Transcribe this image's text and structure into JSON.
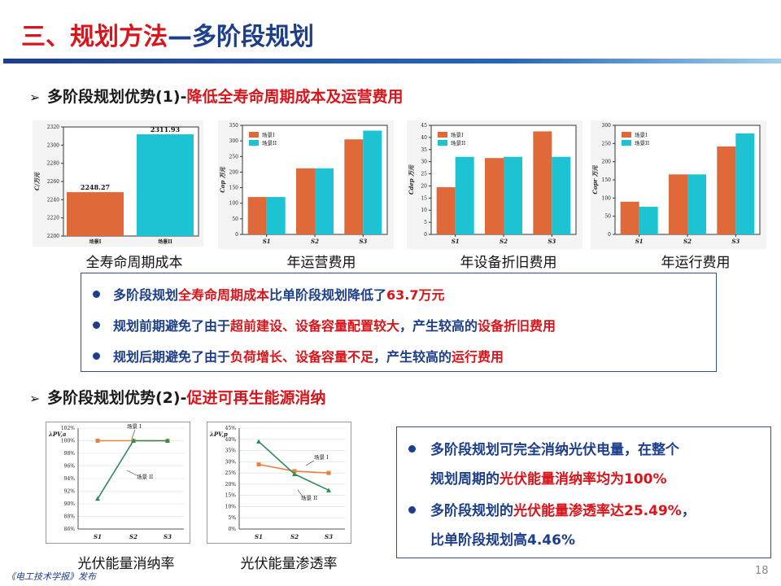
{
  "header": {
    "title_main": "三、规划方法",
    "title_dash": "—",
    "title_sub": "多阶段规划"
  },
  "section1": {
    "prefix": "多阶段规划优势(1)-",
    "highlight": "降低全寿命周期成本及运营费用"
  },
  "section2": {
    "prefix": "多阶段规划优势(2)-",
    "highlight": "促进可再生能源消纳"
  },
  "colors": {
    "orange": "#e0693a",
    "cyan": "#1ec3d3",
    "red": "#d7151b",
    "navy": "#1d3f8a",
    "line_orange": "#e8803f",
    "line_green": "#2e8b57"
  },
  "chart_data": [
    {
      "type": "bar",
      "caption": "全寿命周期成本",
      "ylabel": "C/万元",
      "ylim": [
        2200,
        2320
      ],
      "yticks": [
        "2200",
        "2220",
        "2240",
        "2260",
        "2280",
        "2300",
        "2320"
      ],
      "categories": [
        "场景I",
        "场景II"
      ],
      "values": [
        2248.27,
        2311.93
      ],
      "data_labels": [
        "2248.27",
        "2311.93"
      ]
    },
    {
      "type": "bar",
      "caption": "年运营费用",
      "ylabel": "Cop 万元",
      "ylim": [
        0,
        350
      ],
      "yticks": [
        "0",
        "50",
        "100",
        "150",
        "200",
        "250",
        "300",
        "350"
      ],
      "categories": [
        "S1",
        "S2",
        "S3"
      ],
      "legend": [
        "场景I",
        "场景II"
      ],
      "series": [
        {
          "name": "场景I",
          "values": [
            120,
            212,
            305
          ]
        },
        {
          "name": "场景II",
          "values": [
            120,
            212,
            333
          ]
        }
      ]
    },
    {
      "type": "bar",
      "caption": "年设备折旧费用",
      "ylabel": "Cdep 万元",
      "ylim": [
        0,
        45
      ],
      "yticks": [
        "0",
        "5",
        "10",
        "15",
        "20",
        "25",
        "30",
        "35",
        "40",
        "45"
      ],
      "categories": [
        "S1",
        "S2",
        "S3"
      ],
      "legend": [
        "场景I",
        "场景II"
      ],
      "series": [
        {
          "name": "场景I",
          "values": [
            19.5,
            31.5,
            42.5
          ]
        },
        {
          "name": "场景II",
          "values": [
            32,
            32,
            32
          ]
        }
      ]
    },
    {
      "type": "bar",
      "caption": "年运行费用",
      "ylabel": "Copr 万元",
      "ylim": [
        0,
        300
      ],
      "yticks": [
        "0",
        "50",
        "100",
        "150",
        "200",
        "250",
        "300"
      ],
      "categories": [
        "S1",
        "S2",
        "S3"
      ],
      "legend": [
        "场景I",
        "场景II"
      ],
      "series": [
        {
          "name": "场景I",
          "values": [
            90,
            165,
            242
          ]
        },
        {
          "name": "场景II",
          "values": [
            76,
            165,
            278
          ]
        }
      ]
    },
    {
      "type": "line",
      "caption": "光伏能量消纳率",
      "ylabel": "λPV,a",
      "ylim": [
        86,
        102
      ],
      "yticks": [
        "86%",
        "88%",
        "90%",
        "92%",
        "94%",
        "96%",
        "98%",
        "100%",
        "102%"
      ],
      "categories": [
        "S1",
        "S2",
        "S3"
      ],
      "series": [
        {
          "name": "场景I",
          "values": [
            100,
            100,
            100
          ]
        },
        {
          "name": "场景II",
          "values": [
            90.8,
            100,
            100
          ]
        }
      ],
      "annotations": [
        "场景 I",
        "场景 II"
      ]
    },
    {
      "type": "line",
      "caption": "光伏能量渗透率",
      "ylabel": "λPV,p",
      "ylim": [
        0,
        45
      ],
      "yticks": [
        "0%",
        "5%",
        "10%",
        "15%",
        "20%",
        "25%",
        "30%",
        "35%",
        "40%",
        "45%"
      ],
      "categories": [
        "S1",
        "S2",
        "S3"
      ],
      "series": [
        {
          "name": "场景I",
          "values": [
            28.8,
            25.8,
            25
          ]
        },
        {
          "name": "场景II",
          "values": [
            39,
            24.5,
            17.3
          ]
        }
      ],
      "annotations": [
        "场景 I",
        "场景 II"
      ]
    }
  ],
  "box1": {
    "b1_a": "多阶段规划",
    "b1_b": "全寿命周期成本",
    "b1_c": "比单阶段规划降低了",
    "b1_d": "63.7万元",
    "b2_a": "规划前期避免了由于",
    "b2_b": "超前建设、设备容量配置较大",
    "b2_c": "，产生较高的",
    "b2_d": "设备折旧费用",
    "b3_a": "规划后期避免了由于",
    "b3_b": "负荷增长、设备容量不足",
    "b3_c": "，产生较高的",
    "b3_d": "运行费用"
  },
  "box2": {
    "l1": "多阶段规划可完全消纳光伏电量，在整个",
    "l2_a": "规划周期的",
    "l2_b": "光伏能量消纳率均为100%",
    "l3_a": "多阶段规划的",
    "l3_b": "光伏能量渗透率达25.49%",
    "l3_c": "，",
    "l4": "比单阶段规划高4.46%"
  },
  "footer": {
    "source": "《电工技术学报》发布",
    "page": "18"
  }
}
